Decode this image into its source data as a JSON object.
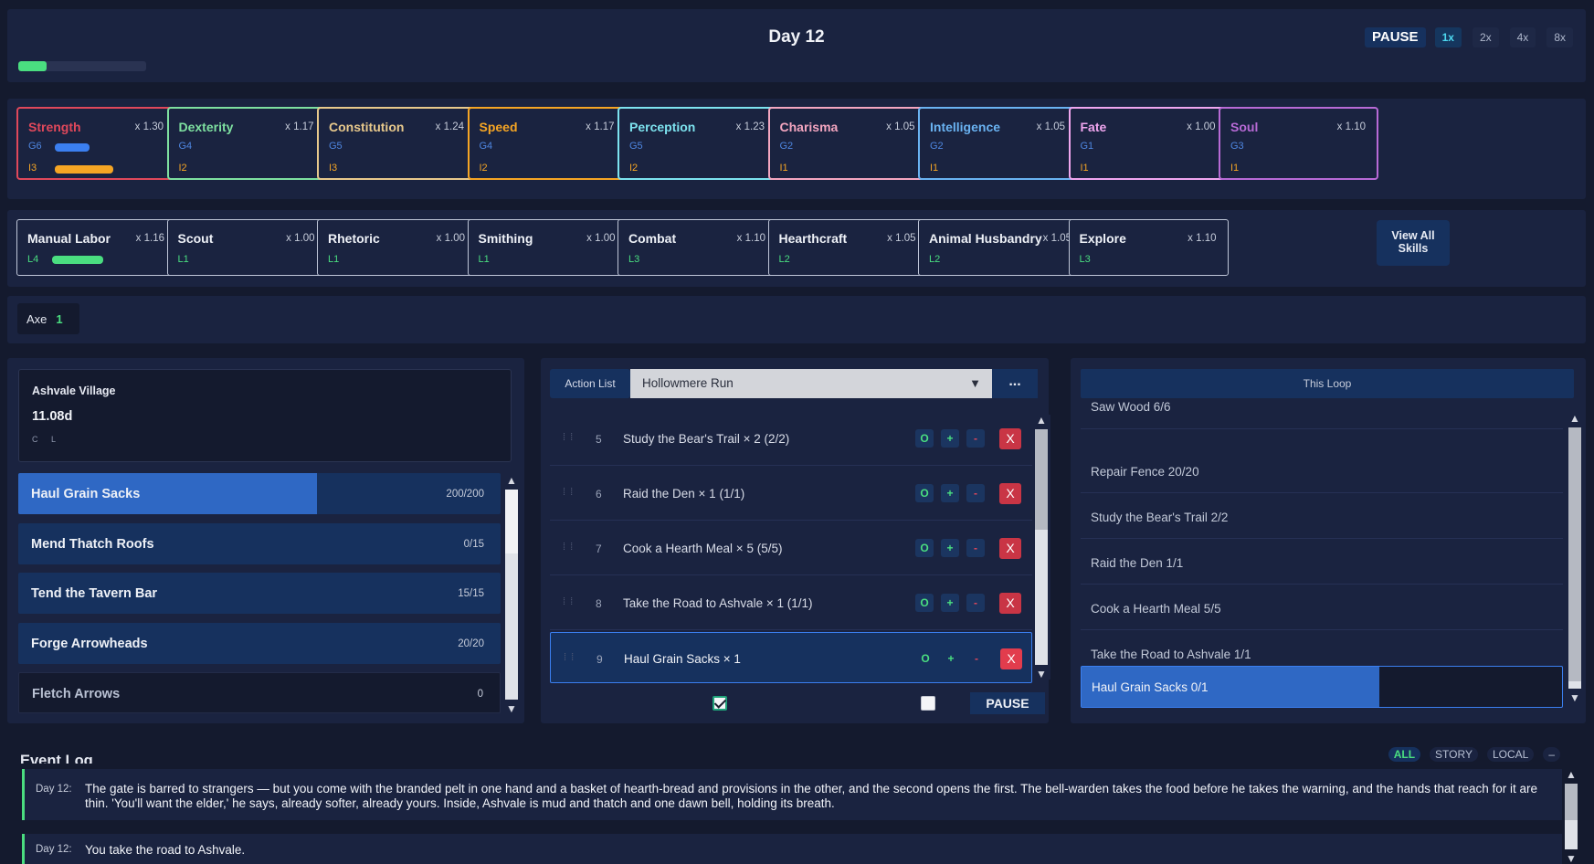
{
  "header": {
    "day_title": "Day 12",
    "day_progress": 0.22,
    "pause_label": "PAUSE",
    "speeds": [
      "1x",
      "2x",
      "4x",
      "8x"
    ],
    "active_speed": "1x"
  },
  "stats": [
    {
      "name": "Strength",
      "mult": "x 1.30",
      "g": "G6",
      "i": "I3",
      "color": "#e0485b",
      "bars": true
    },
    {
      "name": "Dexterity",
      "mult": "x 1.17",
      "g": "G4",
      "i": "I2",
      "color": "#7ee0a0"
    },
    {
      "name": "Constitution",
      "mult": "x 1.24",
      "g": "G5",
      "i": "I3",
      "color": "#e8c98c"
    },
    {
      "name": "Speed",
      "mult": "x 1.17",
      "g": "G4",
      "i": "I2",
      "color": "#f5a524"
    },
    {
      "name": "Perception",
      "mult": "x 1.23",
      "g": "G5",
      "i": "I2",
      "color": "#7de3ef"
    },
    {
      "name": "Charisma",
      "mult": "x 1.05",
      "g": "G2",
      "i": "I1",
      "color": "#f4a6c0"
    },
    {
      "name": "Intelligence",
      "mult": "x 1.05",
      "g": "G2",
      "i": "I1",
      "color": "#6ab3f2"
    },
    {
      "name": "Fate",
      "mult": "x 1.00",
      "g": "G1",
      "i": "I1",
      "color": "#f0a6ef"
    },
    {
      "name": "Soul",
      "mult": "x 1.10",
      "g": "G3",
      "i": "I1",
      "color": "#b86ad6"
    }
  ],
  "skills": [
    {
      "name": "Manual Labor",
      "mult": "x 1.16",
      "level": "L4",
      "bar": true
    },
    {
      "name": "Scout",
      "mult": "x 1.00",
      "level": "L1"
    },
    {
      "name": "Rhetoric",
      "mult": "x 1.00",
      "level": "L1"
    },
    {
      "name": "Smithing",
      "mult": "x 1.00",
      "level": "L1"
    },
    {
      "name": "Combat",
      "mult": "x 1.10",
      "level": "L3"
    },
    {
      "name": "Hearthcraft",
      "mult": "x 1.05",
      "level": "L2"
    },
    {
      "name": "Animal Husbandry",
      "mult": "x 1.05",
      "level": "L2"
    },
    {
      "name": "Explore",
      "mult": "x 1.10",
      "level": "L3"
    }
  ],
  "view_all_line1": "View All",
  "view_all_line2": "Skills",
  "tools": [
    {
      "name": "Axe",
      "count": "1"
    }
  ],
  "location": {
    "name": "Ashvale Village",
    "time": "11.08d",
    "flags": "C L",
    "actions": [
      {
        "name": "Haul Grain Sacks",
        "count": "200/200",
        "progress": 0.62
      },
      {
        "name": "Mend Thatch Roofs",
        "count": "0/15",
        "progress": 0
      },
      {
        "name": "Tend the Tavern Bar",
        "count": "15/15",
        "progress": 0
      },
      {
        "name": "Forge Arrowheads",
        "count": "20/20",
        "progress": 0
      },
      {
        "name": "Fletch Arrows",
        "count": "0",
        "progress": 0,
        "dim": true
      }
    ]
  },
  "action_list": {
    "label": "Action List",
    "selected": "Hollowmere Run",
    "more": "...",
    "rows": [
      {
        "num": "5",
        "text": "Study the Bear's Trail × 2 (2/2)"
      },
      {
        "num": "6",
        "text": "Raid the Den × 1 (1/1)"
      },
      {
        "num": "7",
        "text": "Cook a Hearth Meal × 5 (5/5)"
      },
      {
        "num": "8",
        "text": "Take the Road to Ashvale × 1 (1/1)"
      },
      {
        "num": "9",
        "text": "Haul Grain Sacks × 1",
        "selected": true
      }
    ],
    "buttons": {
      "o": "O",
      "plus": "+",
      "minus": "-",
      "x": "X"
    },
    "pause_label": "PAUSE"
  },
  "loop": {
    "title": "This Loop",
    "items": [
      "Saw Wood 6/6",
      "Repair Fence 20/20",
      "Study the Bear's Trail 2/2",
      "Raid the Den 1/1",
      "Cook a Hearth Meal 5/5",
      "Take the Road to Ashvale 1/1"
    ],
    "current": {
      "text": "Haul Grain Sacks 0/1",
      "progress": 0.62
    }
  },
  "log": {
    "title": "Event Log",
    "filters": [
      "ALL",
      "STORY",
      "LOCAL",
      "–"
    ],
    "active_filter": "ALL",
    "entries": [
      {
        "day": "Day 12:",
        "text": "The gate is barred to strangers — but you come with the branded pelt in one hand and a basket of hearth-bread and provisions in the other, and the second opens the first. The bell-warden takes the food before he takes the warning, and the hands that reach for it are thin. 'You'll want the elder,' he says, already softer, already yours. Inside, Ashvale is mud and thatch and one dawn bell, holding its breath."
      },
      {
        "day": "Day 12:",
        "text": "You take the road to Ashvale."
      }
    ]
  }
}
